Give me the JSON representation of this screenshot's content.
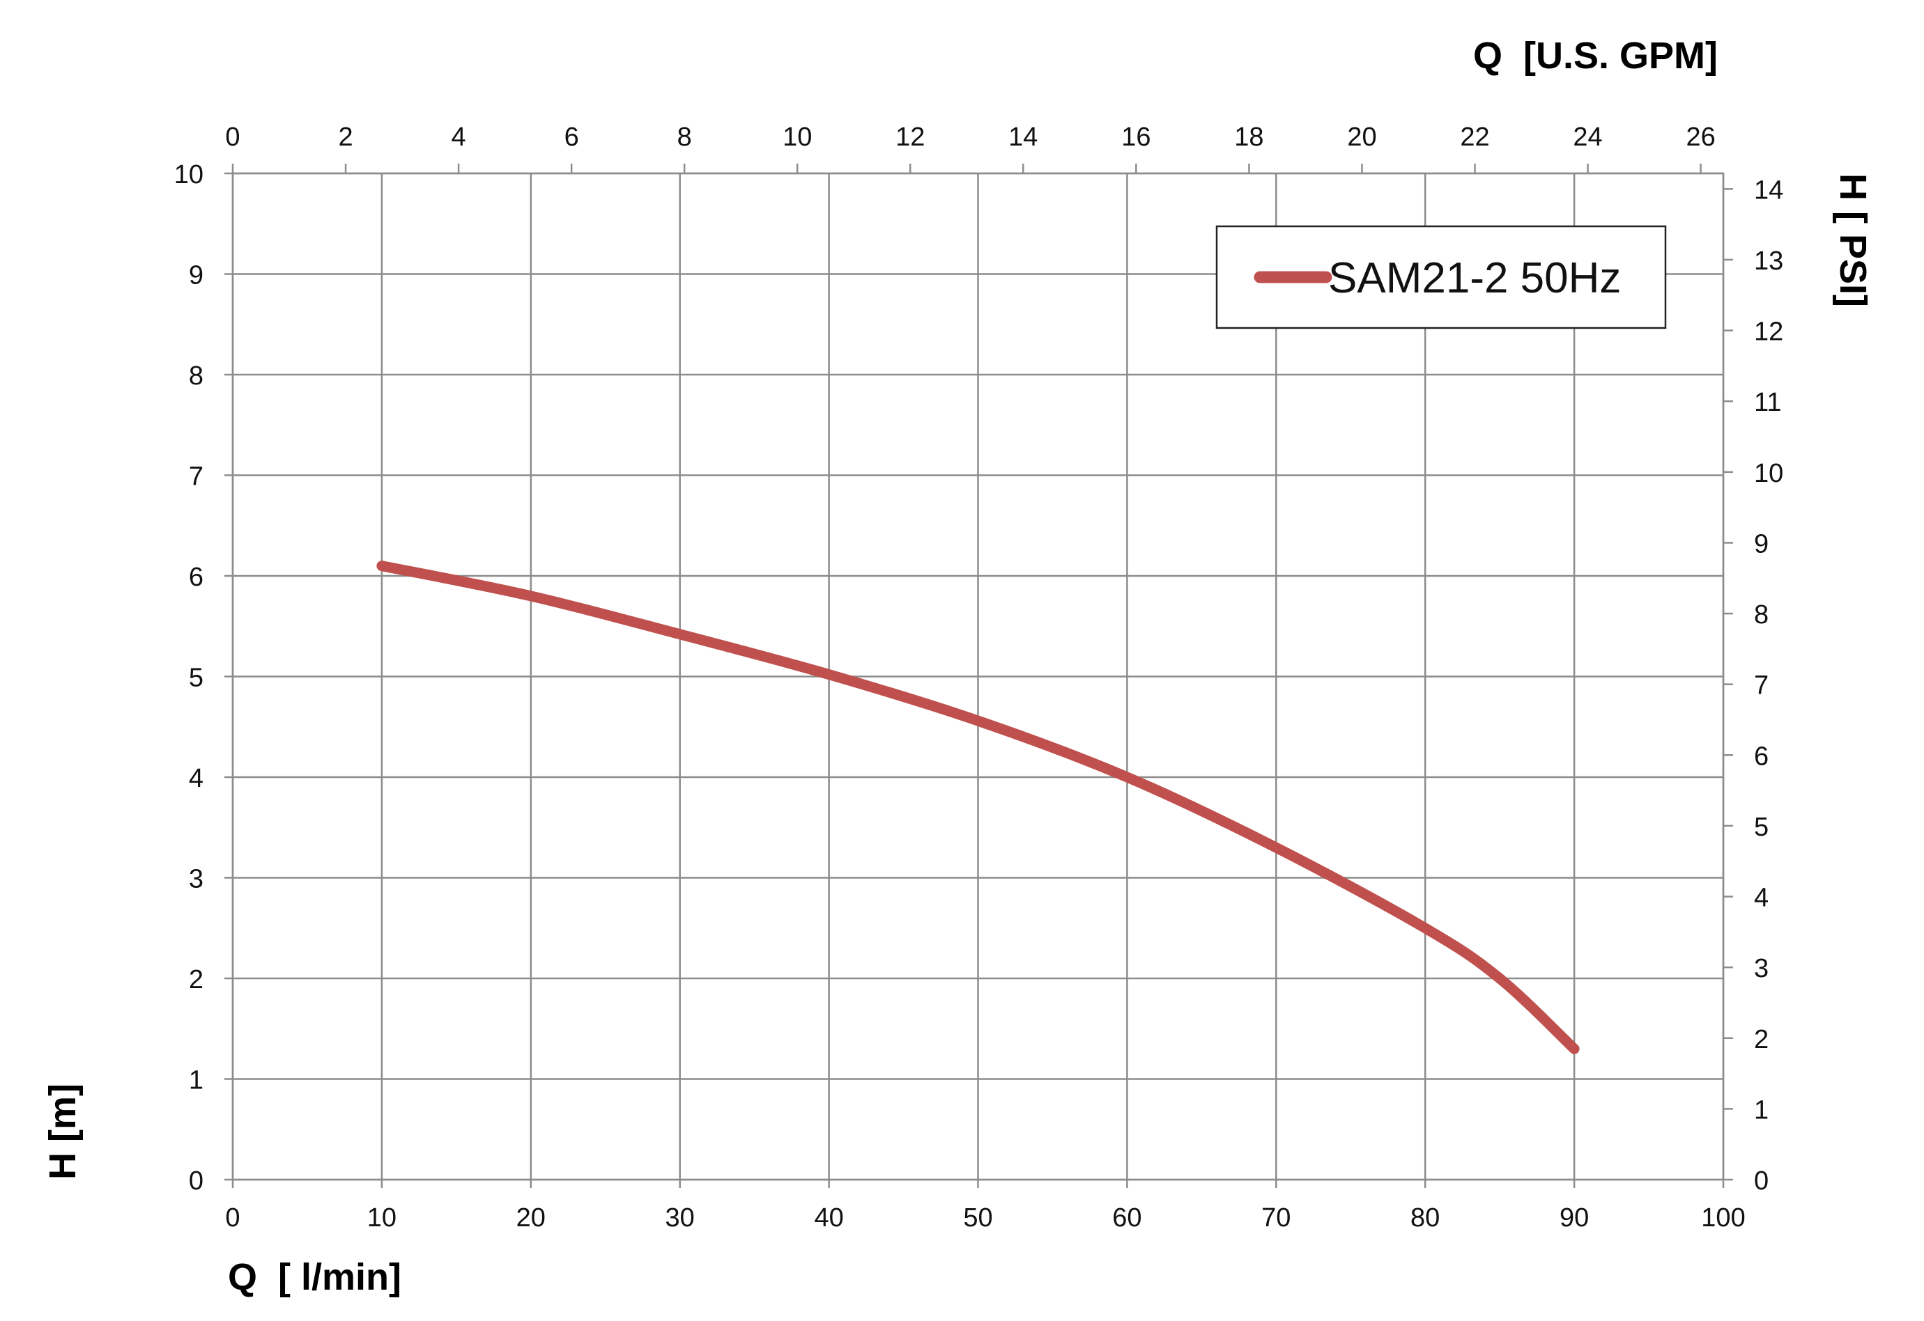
{
  "chart_data": {
    "type": "line",
    "series": [
      {
        "name": "SAM21-2 50Hz",
        "color": "#c0504d",
        "x": [
          10,
          20,
          30,
          40,
          50,
          60,
          70,
          80,
          85,
          90
        ],
        "y": [
          6.1,
          5.8,
          5.42,
          5.02,
          4.56,
          4.0,
          3.3,
          2.5,
          2.0,
          1.3
        ]
      }
    ],
    "xlabel": "Q  [ l/min]",
    "ylabel": "H [m]",
    "x2label": "Q  [U.S. GPM]",
    "y2label": "H [ PSI]",
    "xlim": [
      0,
      100
    ],
    "ylim": [
      0,
      10
    ],
    "x2lim": [
      0,
      26.4
    ],
    "y2lim": [
      0,
      14.22
    ],
    "xticks": [
      0,
      10,
      20,
      30,
      40,
      50,
      60,
      70,
      80,
      90,
      100
    ],
    "yticks": [
      0,
      1,
      2,
      3,
      4,
      5,
      6,
      7,
      8,
      9,
      10
    ],
    "x2ticks": [
      0,
      2,
      4,
      6,
      8,
      10,
      12,
      14,
      16,
      18,
      20,
      22,
      24,
      26
    ],
    "y2ticks": [
      0,
      1,
      2,
      3,
      4,
      5,
      6,
      7,
      8,
      9,
      10,
      11,
      12,
      13,
      14
    ],
    "grid": true,
    "legend_position": "top-right"
  }
}
